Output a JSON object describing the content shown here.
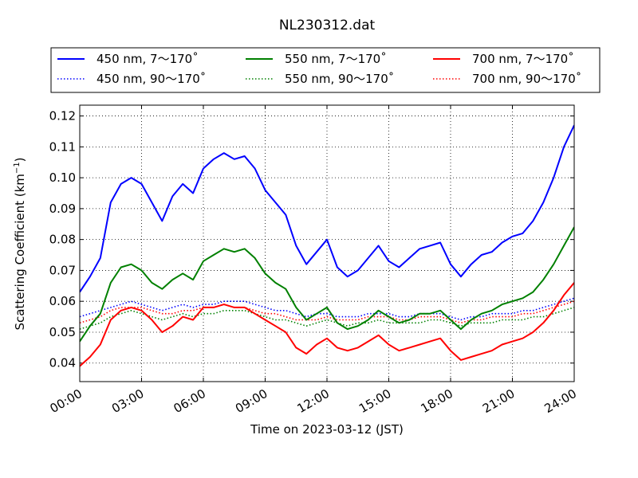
{
  "chart_data": {
    "type": "line",
    "title": "NL230312.dat",
    "xlabel": "Time on 2023-03-12 (JST)",
    "ylabel_main": "Scattering Coefficient (km",
    "ylabel_sup": "−1",
    "ylabel_close": ")",
    "xlim": [
      "2023-03-12 00:00",
      "2023-03-13 00:00"
    ],
    "ylim": [
      0.034,
      0.1235
    ],
    "x_ticks": [
      "00:00",
      "03:00",
      "06:00",
      "09:00",
      "12:00",
      "15:00",
      "18:00",
      "21:00",
      "24:00"
    ],
    "y_ticks": [
      "0.04",
      "0.05",
      "0.06",
      "0.07",
      "0.08",
      "0.09",
      "0.10",
      "0.11",
      "0.12"
    ],
    "grid": true,
    "legend_position": "top, above plot",
    "series": [
      {
        "name": "450 nm, 7～170˚",
        "color": "#0000ff",
        "style": "solid",
        "x": [
          "00:00",
          "00:30",
          "01:00",
          "01:30",
          "02:00",
          "02:30",
          "03:00",
          "03:30",
          "04:00",
          "04:30",
          "05:00",
          "05:30",
          "06:00",
          "06:30",
          "07:00",
          "07:30",
          "08:00",
          "08:30",
          "09:00",
          "09:30",
          "10:00",
          "10:30",
          "11:00",
          "11:30",
          "12:00",
          "12:30",
          "13:00",
          "13:30",
          "14:00",
          "14:30",
          "15:00",
          "15:30",
          "16:00",
          "16:30",
          "17:00",
          "17:30",
          "18:00",
          "18:30",
          "19:00",
          "19:30",
          "20:00",
          "20:30",
          "21:00",
          "21:30",
          "22:00",
          "22:30",
          "23:00",
          "23:30",
          "24:00"
        ],
        "values": [
          0.063,
          0.068,
          0.074,
          0.092,
          0.098,
          0.1,
          0.098,
          0.092,
          0.086,
          0.094,
          0.098,
          0.095,
          0.103,
          0.106,
          0.108,
          0.106,
          0.107,
          0.103,
          0.096,
          0.092,
          0.088,
          0.078,
          0.072,
          0.076,
          0.08,
          0.071,
          0.068,
          0.07,
          0.074,
          0.078,
          0.073,
          0.071,
          0.074,
          0.077,
          0.078,
          0.079,
          0.072,
          0.068,
          0.072,
          0.075,
          0.076,
          0.079,
          0.081,
          0.082,
          0.086,
          0.092,
          0.1,
          0.11,
          0.117
        ]
      },
      {
        "name": "550 nm, 7～170˚",
        "color": "#008000",
        "style": "solid",
        "x": [
          "00:00",
          "00:30",
          "01:00",
          "01:30",
          "02:00",
          "02:30",
          "03:00",
          "03:30",
          "04:00",
          "04:30",
          "05:00",
          "05:30",
          "06:00",
          "06:30",
          "07:00",
          "07:30",
          "08:00",
          "08:30",
          "09:00",
          "09:30",
          "10:00",
          "10:30",
          "11:00",
          "11:30",
          "12:00",
          "12:30",
          "13:00",
          "13:30",
          "14:00",
          "14:30",
          "15:00",
          "15:30",
          "16:00",
          "16:30",
          "17:00",
          "17:30",
          "18:00",
          "18:30",
          "19:00",
          "19:30",
          "20:00",
          "20:30",
          "21:00",
          "21:30",
          "22:00",
          "22:30",
          "23:00",
          "23:30",
          "24:00"
        ],
        "values": [
          0.047,
          0.052,
          0.056,
          0.066,
          0.071,
          0.072,
          0.07,
          0.066,
          0.064,
          0.067,
          0.069,
          0.067,
          0.073,
          0.075,
          0.077,
          0.076,
          0.077,
          0.074,
          0.069,
          0.066,
          0.064,
          0.058,
          0.054,
          0.056,
          0.058,
          0.053,
          0.051,
          0.052,
          0.054,
          0.057,
          0.055,
          0.053,
          0.054,
          0.056,
          0.056,
          0.057,
          0.054,
          0.051,
          0.054,
          0.056,
          0.057,
          0.059,
          0.06,
          0.061,
          0.063,
          0.067,
          0.072,
          0.078,
          0.084
        ]
      },
      {
        "name": "700 nm, 7～170˚",
        "color": "#ff0000",
        "style": "solid",
        "x": [
          "00:00",
          "00:30",
          "01:00",
          "01:30",
          "02:00",
          "02:30",
          "03:00",
          "03:30",
          "04:00",
          "04:30",
          "05:00",
          "05:30",
          "06:00",
          "06:30",
          "07:00",
          "07:30",
          "08:00",
          "08:30",
          "09:00",
          "09:30",
          "10:00",
          "10:30",
          "11:00",
          "11:30",
          "12:00",
          "12:30",
          "13:00",
          "13:30",
          "14:00",
          "14:30",
          "15:00",
          "15:30",
          "16:00",
          "16:30",
          "17:00",
          "17:30",
          "18:00",
          "18:30",
          "19:00",
          "19:30",
          "20:00",
          "20:30",
          "21:00",
          "21:30",
          "22:00",
          "22:30",
          "23:00",
          "23:30",
          "24:00"
        ],
        "values": [
          0.039,
          0.042,
          0.046,
          0.054,
          0.057,
          0.058,
          0.057,
          0.054,
          0.05,
          0.052,
          0.055,
          0.054,
          0.058,
          0.058,
          0.059,
          0.058,
          0.058,
          0.056,
          0.054,
          0.052,
          0.05,
          0.045,
          0.043,
          0.046,
          0.048,
          0.045,
          0.044,
          0.045,
          0.047,
          0.049,
          0.046,
          0.044,
          0.045,
          0.046,
          0.047,
          0.048,
          0.044,
          0.041,
          0.042,
          0.043,
          0.044,
          0.046,
          0.047,
          0.048,
          0.05,
          0.053,
          0.057,
          0.062,
          0.066
        ]
      },
      {
        "name": "450 nm, 90～170˚",
        "color": "#0000ff",
        "style": "dotted",
        "x": [
          "00:00",
          "00:30",
          "01:00",
          "01:30",
          "02:00",
          "02:30",
          "03:00",
          "03:30",
          "04:00",
          "04:30",
          "05:00",
          "05:30",
          "06:00",
          "06:30",
          "07:00",
          "07:30",
          "08:00",
          "08:30",
          "09:00",
          "09:30",
          "10:00",
          "10:30",
          "11:00",
          "11:30",
          "12:00",
          "12:30",
          "13:00",
          "13:30",
          "14:00",
          "14:30",
          "15:00",
          "15:30",
          "16:00",
          "16:30",
          "17:00",
          "17:30",
          "18:00",
          "18:30",
          "19:00",
          "19:30",
          "20:00",
          "20:30",
          "21:00",
          "21:30",
          "22:00",
          "22:30",
          "23:00",
          "23:30",
          "24:00"
        ],
        "values": [
          0.055,
          0.056,
          0.057,
          0.058,
          0.059,
          0.06,
          0.059,
          0.058,
          0.057,
          0.058,
          0.059,
          0.058,
          0.059,
          0.059,
          0.06,
          0.06,
          0.06,
          0.059,
          0.058,
          0.057,
          0.057,
          0.056,
          0.055,
          0.056,
          0.056,
          0.055,
          0.055,
          0.055,
          0.056,
          0.056,
          0.056,
          0.055,
          0.055,
          0.056,
          0.056,
          0.056,
          0.055,
          0.054,
          0.055,
          0.055,
          0.056,
          0.056,
          0.056,
          0.057,
          0.057,
          0.058,
          0.059,
          0.06,
          0.061
        ]
      },
      {
        "name": "550 nm, 90～170˚",
        "color": "#008000",
        "style": "dotted",
        "x": [
          "00:00",
          "00:30",
          "01:00",
          "01:30",
          "02:00",
          "02:30",
          "03:00",
          "03:30",
          "04:00",
          "04:30",
          "05:00",
          "05:30",
          "06:00",
          "06:30",
          "07:00",
          "07:30",
          "08:00",
          "08:30",
          "09:00",
          "09:30",
          "10:00",
          "10:30",
          "11:00",
          "11:30",
          "12:00",
          "12:30",
          "13:00",
          "13:30",
          "14:00",
          "14:30",
          "15:00",
          "15:30",
          "16:00",
          "16:30",
          "17:00",
          "17:30",
          "18:00",
          "18:30",
          "19:00",
          "19:30",
          "20:00",
          "20:30",
          "21:00",
          "21:30",
          "22:00",
          "22:30",
          "23:00",
          "23:30",
          "24:00"
        ],
        "values": [
          0.051,
          0.052,
          0.053,
          0.055,
          0.056,
          0.057,
          0.056,
          0.055,
          0.054,
          0.055,
          0.056,
          0.055,
          0.056,
          0.056,
          0.057,
          0.057,
          0.057,
          0.056,
          0.055,
          0.054,
          0.054,
          0.053,
          0.052,
          0.053,
          0.054,
          0.053,
          0.052,
          0.053,
          0.053,
          0.054,
          0.053,
          0.053,
          0.053,
          0.053,
          0.054,
          0.054,
          0.053,
          0.052,
          0.053,
          0.053,
          0.053,
          0.054,
          0.054,
          0.054,
          0.055,
          0.055,
          0.056,
          0.057,
          0.058
        ]
      },
      {
        "name": "700 nm, 90～170˚",
        "color": "#ff0000",
        "style": "dotted",
        "x": [
          "00:00",
          "00:30",
          "01:00",
          "01:30",
          "02:00",
          "02:30",
          "03:00",
          "03:30",
          "04:00",
          "04:30",
          "05:00",
          "05:30",
          "06:00",
          "06:30",
          "07:00",
          "07:30",
          "08:00",
          "08:30",
          "09:00",
          "09:30",
          "10:00",
          "10:30",
          "11:00",
          "11:30",
          "12:00",
          "12:30",
          "13:00",
          "13:30",
          "14:00",
          "14:30",
          "15:00",
          "15:30",
          "16:00",
          "16:30",
          "17:00",
          "17:30",
          "18:00",
          "18:30",
          "19:00",
          "19:30",
          "20:00",
          "20:30",
          "21:00",
          "21:30",
          "22:00",
          "22:30",
          "23:00",
          "23:30",
          "24:00"
        ],
        "values": [
          0.053,
          0.054,
          0.055,
          0.057,
          0.058,
          0.058,
          0.058,
          0.057,
          0.056,
          0.056,
          0.057,
          0.057,
          0.058,
          0.058,
          0.059,
          0.058,
          0.058,
          0.057,
          0.056,
          0.056,
          0.055,
          0.054,
          0.054,
          0.054,
          0.055,
          0.054,
          0.054,
          0.054,
          0.055,
          0.055,
          0.055,
          0.054,
          0.054,
          0.055,
          0.055,
          0.055,
          0.054,
          0.053,
          0.054,
          0.054,
          0.055,
          0.055,
          0.055,
          0.056,
          0.056,
          0.057,
          0.058,
          0.059,
          0.06
        ]
      }
    ]
  }
}
